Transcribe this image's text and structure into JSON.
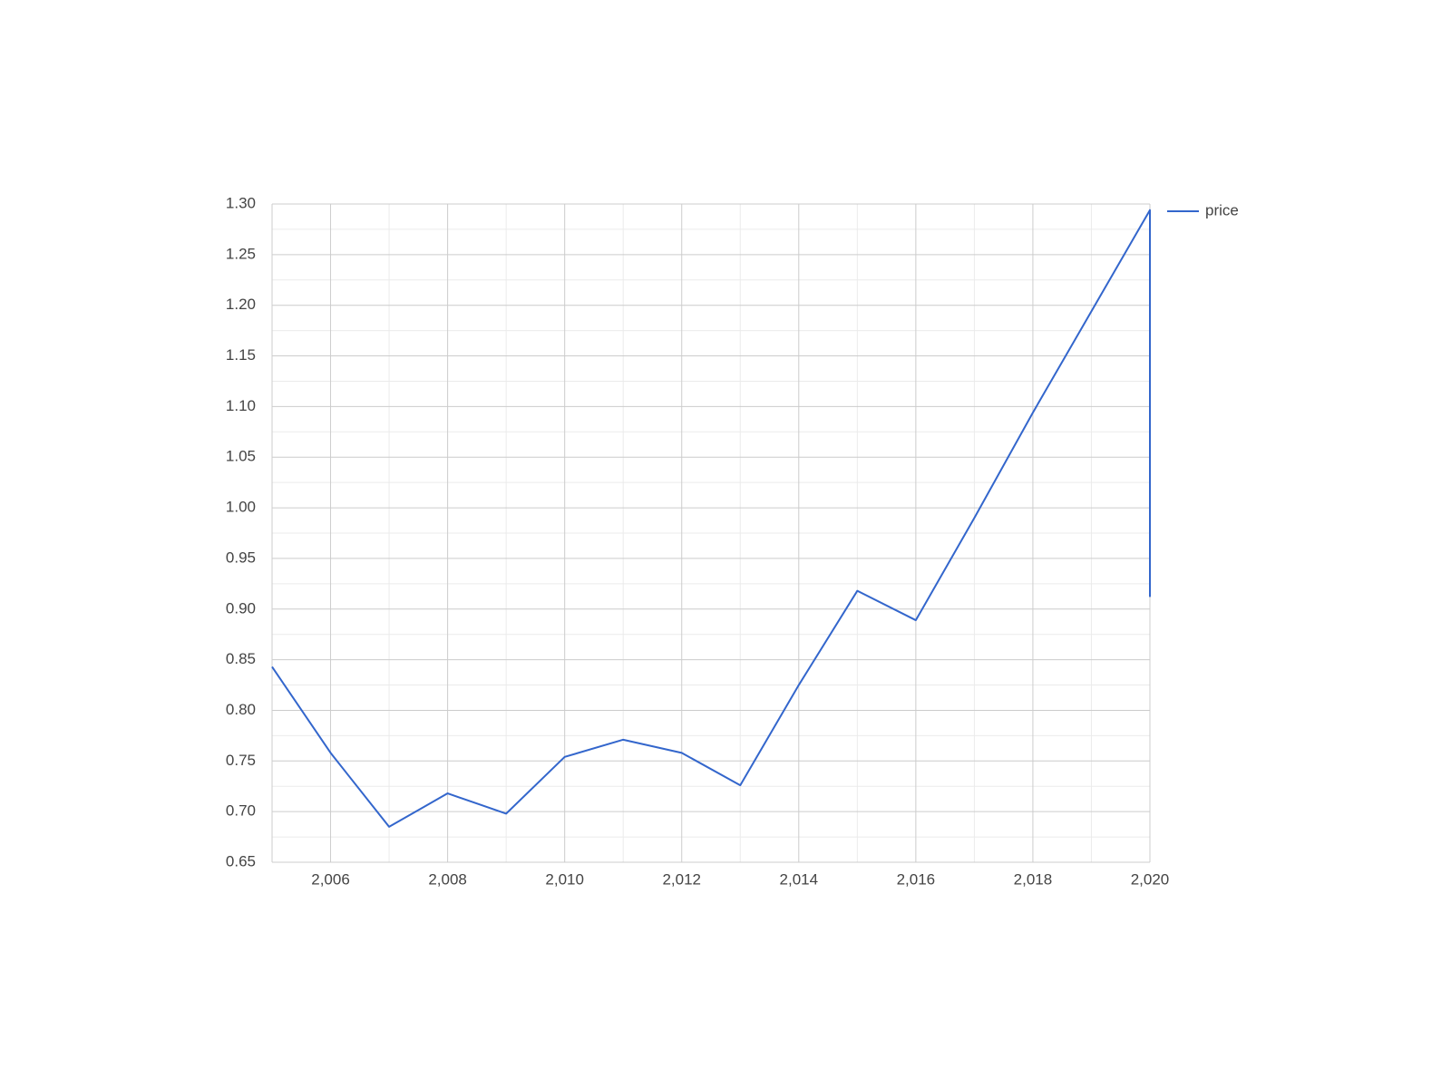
{
  "chart_data": {
    "type": "line",
    "x": [
      2005,
      2006,
      2007,
      2008,
      2009,
      2010,
      2011,
      2012,
      2013,
      2014,
      2015,
      2016,
      2017,
      2018,
      2019,
      2020,
      2020
    ],
    "series": [
      {
        "name": "price",
        "color": "#3366cc",
        "values": [
          0.843,
          0.758,
          0.685,
          0.718,
          0.698,
          0.754,
          0.771,
          0.758,
          0.726,
          0.825,
          0.918,
          0.889,
          0.99,
          1.094,
          1.194,
          1.294,
          0.912
        ]
      }
    ],
    "xlim": [
      2005,
      2020
    ],
    "xticks": [
      {
        "value": 2006,
        "label": "2,006"
      },
      {
        "value": 2008,
        "label": "2,008"
      },
      {
        "value": 2010,
        "label": "2,010"
      },
      {
        "value": 2012,
        "label": "2,012"
      },
      {
        "value": 2014,
        "label": "2,014"
      },
      {
        "value": 2016,
        "label": "2,016"
      },
      {
        "value": 2018,
        "label": "2,018"
      },
      {
        "value": 2020,
        "label": "2,020"
      }
    ],
    "xminorticks": [
      2005,
      2007,
      2009,
      2011,
      2013,
      2015,
      2017,
      2019
    ],
    "ylim": [
      0.65,
      1.3
    ],
    "yticks": [
      0.65,
      {
        "value": 0.7,
        "label": "0.70"
      },
      0.75,
      {
        "value": 0.8,
        "label": "0.80"
      },
      0.85,
      {
        "value": 0.9,
        "label": "0.90"
      },
      0.95,
      {
        "value": 1.0,
        "label": "1.00"
      },
      1.05,
      {
        "value": 1.1,
        "label": "1.10"
      },
      1.15,
      {
        "value": 1.2,
        "label": "1.20"
      },
      1.25,
      {
        "value": 1.3,
        "label": "1.30"
      }
    ],
    "yminorticks": [
      0.675,
      0.725,
      0.775,
      0.825,
      0.875,
      0.925,
      0.975,
      1.025,
      1.075,
      1.125,
      1.175,
      1.225,
      1.275
    ],
    "grid": true,
    "legend": "right"
  }
}
